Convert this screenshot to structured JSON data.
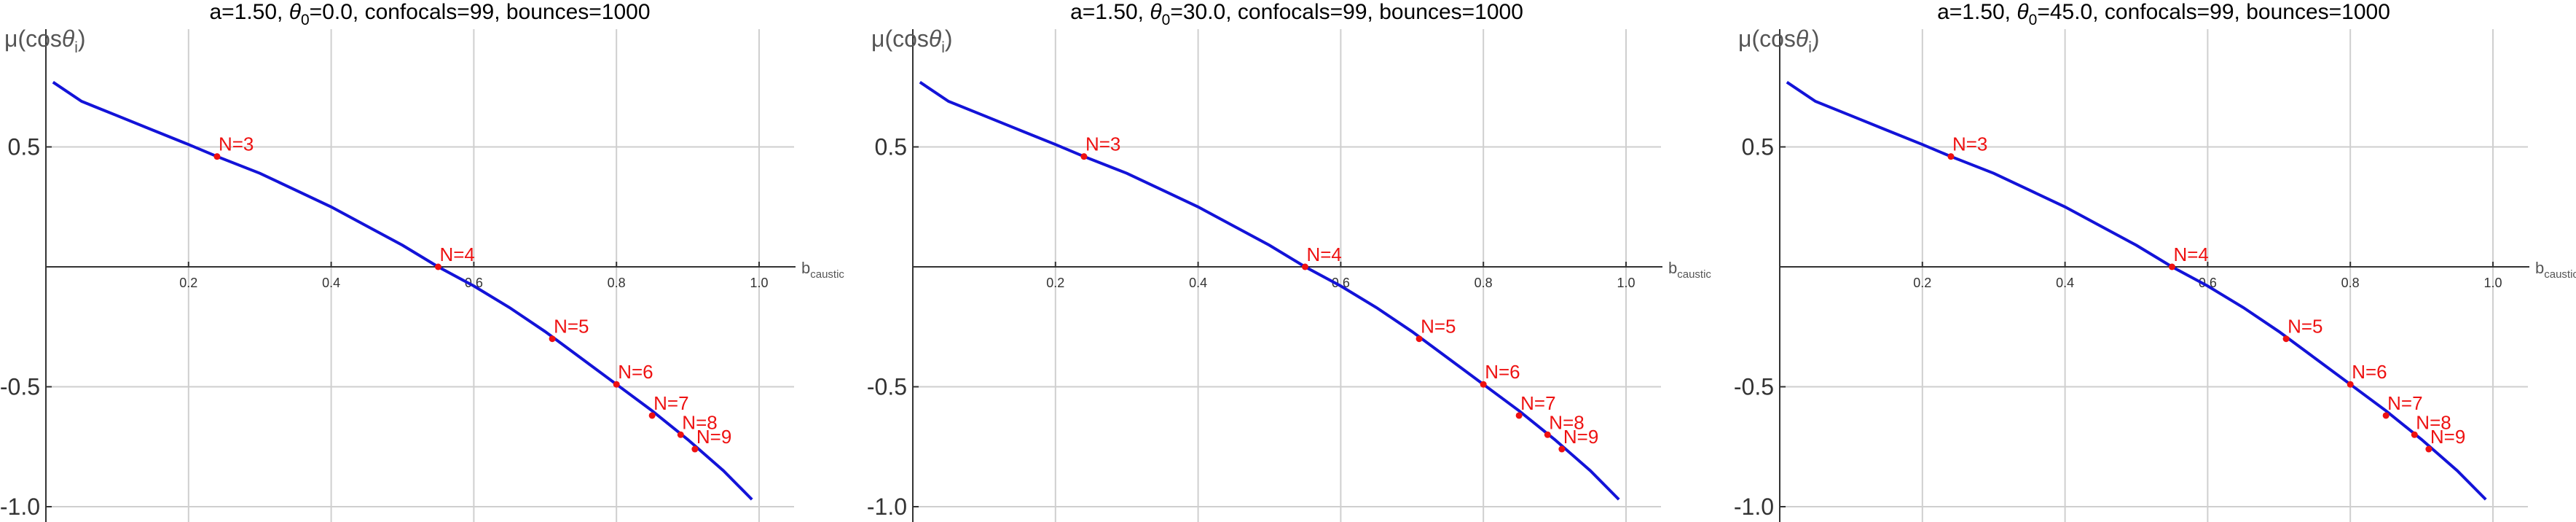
{
  "chart_data": [
    {
      "type": "line",
      "title": "a=1.50, θ0=0.0, confocals=99, bounces=1000",
      "title_parts": {
        "pre": "a=1.50, ",
        "theta": "θ",
        "theta_sub": "0",
        "post": "=0.0, confocals=99, bounces=1000"
      },
      "ylabel": {
        "pre": "μ(cos",
        "theta": "θ",
        "sub": "i",
        "post": ")"
      },
      "xlabel": {
        "main": "b",
        "sub": "caustic"
      },
      "xlim": [
        0.0,
        1.0
      ],
      "ylim": [
        -1.0,
        0.8
      ],
      "x_ticks": [
        0.2,
        0.4,
        0.6,
        0.8,
        1.0
      ],
      "x_tick_labels": [
        "0.2",
        "0.4",
        "0.6",
        "0.8",
        "1.0"
      ],
      "y_ticks": [
        -1.0,
        -0.5,
        0.5
      ],
      "y_tick_labels": [
        "-1.0",
        "-0.5",
        "0.5"
      ],
      "grid": true,
      "series": [
        {
          "color": "#1313d8",
          "x": [
            0.01,
            0.05,
            0.1,
            0.15,
            0.2,
            0.24,
            0.3,
            0.35,
            0.4,
            0.45,
            0.5,
            0.55,
            0.6,
            0.65,
            0.7,
            0.75,
            0.8,
            0.85,
            0.9,
            0.95,
            0.99
          ],
          "y": [
            0.77,
            0.69,
            0.63,
            0.57,
            0.51,
            0.46,
            0.39,
            0.32,
            0.25,
            0.17,
            0.09,
            0.0,
            -0.08,
            -0.17,
            -0.27,
            -0.38,
            -0.49,
            -0.6,
            -0.72,
            -0.85,
            -0.97
          ]
        }
      ],
      "points": [
        {
          "label": "N=3",
          "x": 0.24,
          "y": 0.46
        },
        {
          "label": "N=4",
          "x": 0.55,
          "y": 0.0
        },
        {
          "label": "N=5",
          "x": 0.71,
          "y": -0.3
        },
        {
          "label": "N=6",
          "x": 0.8,
          "y": -0.49
        },
        {
          "label": "N=7",
          "x": 0.85,
          "y": -0.62
        },
        {
          "label": "N=8",
          "x": 0.89,
          "y": -0.7
        },
        {
          "label": "N=9",
          "x": 0.91,
          "y": -0.76
        }
      ]
    },
    {
      "type": "line",
      "title": "a=1.50, θ0=30.0, confocals=99, bounces=1000",
      "title_parts": {
        "pre": "a=1.50, ",
        "theta": "θ",
        "theta_sub": "0",
        "post": "=30.0, confocals=99, bounces=1000"
      },
      "ylabel": {
        "pre": "μ(cos",
        "theta": "θ",
        "sub": "i",
        "post": ")"
      },
      "xlabel": {
        "main": "b",
        "sub": "caustic"
      },
      "xlim": [
        0.0,
        1.0
      ],
      "ylim": [
        -1.0,
        0.8
      ],
      "x_ticks": [
        0.2,
        0.4,
        0.6,
        0.8,
        1.0
      ],
      "x_tick_labels": [
        "0.2",
        "0.4",
        "0.6",
        "0.8",
        "1.0"
      ],
      "y_ticks": [
        -1.0,
        -0.5,
        0.5
      ],
      "y_tick_labels": [
        "-1.0",
        "-0.5",
        "0.5"
      ],
      "grid": true,
      "series": [
        {
          "color": "#1313d8",
          "x": [
            0.01,
            0.05,
            0.1,
            0.15,
            0.2,
            0.24,
            0.3,
            0.35,
            0.4,
            0.45,
            0.5,
            0.55,
            0.6,
            0.65,
            0.7,
            0.75,
            0.8,
            0.85,
            0.9,
            0.95,
            0.99
          ],
          "y": [
            0.77,
            0.69,
            0.63,
            0.57,
            0.51,
            0.46,
            0.39,
            0.32,
            0.25,
            0.17,
            0.09,
            0.0,
            -0.08,
            -0.17,
            -0.27,
            -0.38,
            -0.49,
            -0.6,
            -0.72,
            -0.85,
            -0.97
          ]
        }
      ],
      "points": [
        {
          "label": "N=3",
          "x": 0.24,
          "y": 0.46
        },
        {
          "label": "N=4",
          "x": 0.55,
          "y": 0.0
        },
        {
          "label": "N=5",
          "x": 0.71,
          "y": -0.3
        },
        {
          "label": "N=6",
          "x": 0.8,
          "y": -0.49
        },
        {
          "label": "N=7",
          "x": 0.85,
          "y": -0.62
        },
        {
          "label": "N=8",
          "x": 0.89,
          "y": -0.7
        },
        {
          "label": "N=9",
          "x": 0.91,
          "y": -0.76
        }
      ]
    },
    {
      "type": "line",
      "title": "a=1.50, θ0=45.0, confocals=99, bounces=1000",
      "title_parts": {
        "pre": "a=1.50, ",
        "theta": "θ",
        "theta_sub": "0",
        "post": "=45.0, confocals=99, bounces=1000"
      },
      "ylabel": {
        "pre": "μ(cos",
        "theta": "θ",
        "sub": "i",
        "post": ")"
      },
      "xlabel": {
        "main": "b",
        "sub": "caustic"
      },
      "xlim": [
        0.0,
        1.0
      ],
      "ylim": [
        -1.0,
        0.8
      ],
      "x_ticks": [
        0.2,
        0.4,
        0.6,
        0.8,
        1.0
      ],
      "x_tick_labels": [
        "0.2",
        "0.4",
        "0.6",
        "0.8",
        "1.0"
      ],
      "y_ticks": [
        -1.0,
        -0.5,
        0.5
      ],
      "y_tick_labels": [
        "-1.0",
        "-0.5",
        "0.5"
      ],
      "grid": true,
      "series": [
        {
          "color": "#1313d8",
          "x": [
            0.01,
            0.05,
            0.1,
            0.15,
            0.2,
            0.24,
            0.3,
            0.35,
            0.4,
            0.45,
            0.5,
            0.55,
            0.6,
            0.65,
            0.7,
            0.75,
            0.8,
            0.85,
            0.9,
            0.95,
            0.99
          ],
          "y": [
            0.77,
            0.69,
            0.63,
            0.57,
            0.51,
            0.46,
            0.39,
            0.32,
            0.25,
            0.17,
            0.09,
            0.0,
            -0.08,
            -0.17,
            -0.27,
            -0.38,
            -0.49,
            -0.6,
            -0.72,
            -0.85,
            -0.97
          ]
        }
      ],
      "points": [
        {
          "label": "N=3",
          "x": 0.24,
          "y": 0.46
        },
        {
          "label": "N=4",
          "x": 0.55,
          "y": 0.0
        },
        {
          "label": "N=5",
          "x": 0.71,
          "y": -0.3
        },
        {
          "label": "N=6",
          "x": 0.8,
          "y": -0.49
        },
        {
          "label": "N=7",
          "x": 0.85,
          "y": -0.62
        },
        {
          "label": "N=8",
          "x": 0.89,
          "y": -0.7
        },
        {
          "label": "N=9",
          "x": 0.91,
          "y": -0.76
        }
      ]
    }
  ]
}
